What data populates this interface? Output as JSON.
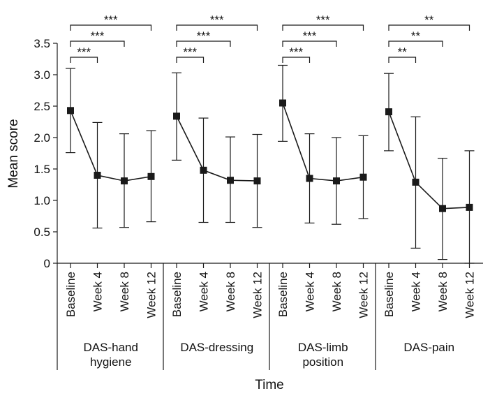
{
  "chart_data": {
    "type": "line",
    "title": "",
    "xlabel": "Time",
    "ylabel": "Mean score",
    "ylim": [
      0,
      3.5
    ],
    "yticks": [
      0,
      0.5,
      1.0,
      1.5,
      2.0,
      2.5,
      3.0,
      3.5
    ],
    "ytick_labels": [
      "0",
      "0.5",
      "1.0",
      "1.5",
      "2.0",
      "2.5",
      "3.0",
      "3.5"
    ],
    "categories": [
      "Baseline",
      "Week 4",
      "Week 8",
      "Week 12"
    ],
    "groups": [
      {
        "name": "DAS-hand hygiene",
        "label_lines": [
          "DAS-hand",
          "hygiene"
        ],
        "means": [
          2.43,
          1.4,
          1.31,
          1.38
        ],
        "upper": [
          3.1,
          2.24,
          2.06,
          2.11
        ],
        "lower": [
          1.76,
          0.56,
          0.57,
          0.66
        ],
        "significance": [
          "***",
          "***",
          "***"
        ]
      },
      {
        "name": "DAS-dressing",
        "label_lines": [
          "DAS-dressing"
        ],
        "means": [
          2.34,
          1.48,
          1.32,
          1.31
        ],
        "upper": [
          3.03,
          2.31,
          2.01,
          2.05
        ],
        "lower": [
          1.64,
          0.65,
          0.65,
          0.57
        ],
        "significance": [
          "***",
          "***",
          "***"
        ]
      },
      {
        "name": "DAS-limb position",
        "label_lines": [
          "DAS-limb",
          "position"
        ],
        "means": [
          2.55,
          1.35,
          1.31,
          1.37
        ],
        "upper": [
          3.15,
          2.06,
          2.0,
          2.03
        ],
        "lower": [
          1.94,
          0.64,
          0.62,
          0.71
        ],
        "significance": [
          "***",
          "***",
          "***"
        ]
      },
      {
        "name": "DAS-pain",
        "label_lines": [
          "DAS-pain"
        ],
        "means": [
          2.41,
          1.29,
          0.87,
          0.89
        ],
        "upper": [
          3.02,
          2.33,
          1.67,
          1.79
        ],
        "lower": [
          1.79,
          0.24,
          0.06,
          0.0
        ],
        "significance": [
          "**",
          "**",
          "**"
        ]
      }
    ],
    "colors": {
      "line": "#1a1a1a",
      "marker": "#1a1a1a",
      "background": "#ffffff"
    }
  }
}
